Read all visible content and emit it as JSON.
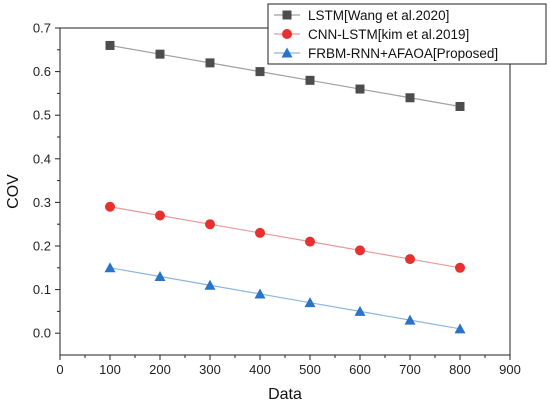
{
  "chart_data": {
    "type": "line",
    "xlabel": "Data",
    "ylabel": "COV",
    "xlim": [
      0,
      900
    ],
    "ylim": [
      -0.05,
      0.7
    ],
    "xticks": [
      0,
      100,
      200,
      300,
      400,
      500,
      600,
      700,
      800,
      900
    ],
    "xtick_labels": [
      "0",
      "100",
      "200",
      "300",
      "400",
      "500",
      "600",
      "700",
      "800",
      "900"
    ],
    "yticks": [
      0.0,
      0.1,
      0.2,
      0.3,
      0.4,
      0.5,
      0.6,
      0.7
    ],
    "ytick_labels": [
      "0.0",
      "0.1",
      "0.2",
      "0.3",
      "0.4",
      "0.5",
      "0.6",
      "0.7"
    ],
    "legend_position": "top-right",
    "grid": false,
    "x": [
      100,
      200,
      300,
      400,
      500,
      600,
      700,
      800
    ],
    "series": [
      {
        "name": "LSTM[Wang et al.2020]",
        "values": [
          0.66,
          0.64,
          0.62,
          0.6,
          0.58,
          0.56,
          0.54,
          0.52
        ],
        "marker": "square",
        "color": "#4d4d4d",
        "line_color": "#a0a0a0"
      },
      {
        "name": "CNN-LSTM[kim et al.2019]",
        "values": [
          0.29,
          0.27,
          0.25,
          0.23,
          0.21,
          0.19,
          0.17,
          0.15
        ],
        "marker": "circle",
        "color": "#e8302e",
        "line_color": "#e89a9a"
      },
      {
        "name": "FRBM-RNN+AFAOA[Proposed]",
        "values": [
          0.15,
          0.13,
          0.11,
          0.09,
          0.07,
          0.05,
          0.03,
          0.01
        ],
        "marker": "triangle",
        "color": "#2a73c9",
        "line_color": "#8fb6de"
      }
    ]
  }
}
